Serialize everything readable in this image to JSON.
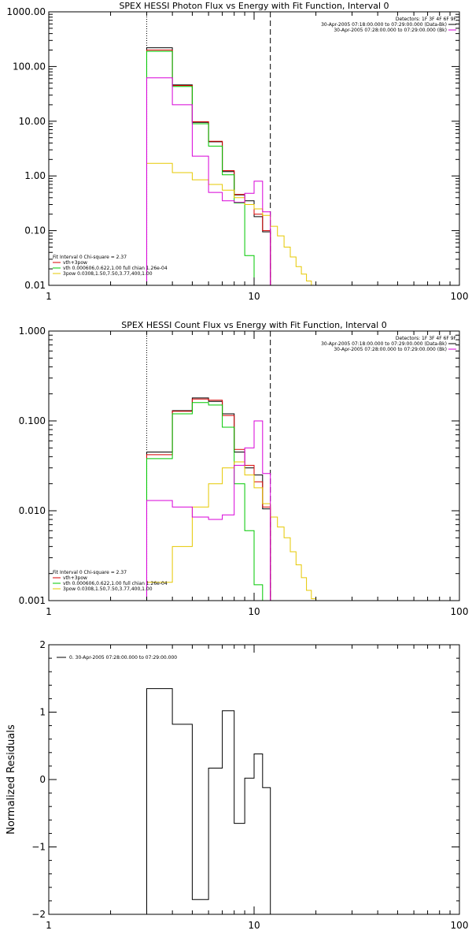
{
  "chart_data": [
    {
      "type": "line",
      "title": "SPEX HESSI Photon Flux vs Energy with Fit Function, Interval 0",
      "xscale": "log",
      "yscale": "log",
      "xlim": [
        1,
        100
      ],
      "ylim": [
        0.01,
        1000
      ],
      "grid": false,
      "x_ticks": [
        "1",
        "10",
        "100"
      ],
      "y_ticks": [
        {
          "value": 1000,
          "label": "1000.00"
        },
        {
          "value": 100,
          "label": "100.00"
        },
        {
          "value": 10,
          "label": "10.00"
        },
        {
          "value": 1,
          "label": "1.00"
        },
        {
          "value": 0.1,
          "label": "0.10"
        },
        {
          "value": 0.01,
          "label": "0.01"
        }
      ],
      "energy_edges": [
        3,
        4,
        5,
        6,
        7,
        8,
        9,
        10,
        11,
        12,
        13,
        14,
        15,
        16,
        17,
        18,
        19,
        20,
        21,
        22
      ],
      "vlines": [
        {
          "x": 3,
          "style": "dotted"
        },
        {
          "x": 12,
          "style": "dashed"
        }
      ],
      "legend_top_right": {
        "detectors": "Detectors: 1F 3F 4F 6F 9F",
        "entries": [
          {
            "text": "30-Apr-2005 07:18:00.000 to 07:29:00.000 (Data-Bk)",
            "color": "#000000"
          },
          {
            "text": "30-Apr-2005 07:28:00.000 to 07:29:00.000 (Bk)",
            "color": "#d800d8"
          }
        ]
      },
      "legend_bottom_left": {
        "header": "Fit Interval 0   Chi-square = 2.37",
        "entries": [
          {
            "text": "vth+3pow",
            "color": "#d80000"
          },
          {
            "text": "vth 0.000606,0.622,1.00  full chian 1.26e-04",
            "color": "#00c800"
          },
          {
            "text": "3pow 0.0308,1.50,7.50,3.77,400,1.00",
            "color": "#e6c800"
          }
        ]
      },
      "series": [
        {
          "name": "Data-Bk",
          "color": "#000000",
          "values": [
            220,
            46,
            9.5,
            4.2,
            1.2,
            0.45,
            0.35,
            0.18,
            0.095
          ]
        },
        {
          "name": "vth+3pow",
          "color": "#d80000",
          "values": [
            200,
            45,
            9.8,
            4.3,
            1.25,
            0.46,
            0.3,
            0.2,
            0.1
          ]
        },
        {
          "name": "vth",
          "color": "#00c800",
          "values": [
            190,
            43,
            9,
            3.5,
            1.05,
            0.32,
            0.035,
            0.0095
          ]
        },
        {
          "name": "3pow",
          "color": "#e6c800",
          "values": [
            1.7,
            1.15,
            0.85,
            0.7,
            0.55,
            0.4,
            0.3,
            0.25,
            0.19,
            0.12,
            0.08,
            0.05,
            0.033,
            0.022,
            0.016,
            0.012,
            0.0095,
            0.0095,
            0.0095
          ]
        },
        {
          "name": "Bk",
          "color": "#d800d8",
          "values": [
            62,
            20,
            2.3,
            0.5,
            0.35,
            0.33,
            0.48,
            0.8,
            0.22
          ]
        }
      ]
    },
    {
      "type": "line",
      "title": "SPEX HESSI Count Flux vs Energy with Fit Function, Interval 0",
      "xscale": "log",
      "yscale": "log",
      "xlim": [
        1,
        100
      ],
      "ylim": [
        0.001,
        1
      ],
      "grid": false,
      "x_ticks": [
        "1",
        "10",
        "100"
      ],
      "y_ticks": [
        {
          "value": 1,
          "label": "1.000"
        },
        {
          "value": 0.1,
          "label": "0.100"
        },
        {
          "value": 0.01,
          "label": "0.010"
        },
        {
          "value": 0.001,
          "label": "0.001"
        }
      ],
      "energy_edges": [
        3,
        4,
        5,
        6,
        7,
        8,
        9,
        10,
        11,
        12,
        13,
        14,
        15,
        16,
        17,
        18,
        19,
        20,
        21,
        22
      ],
      "vlines": [
        {
          "x": 3,
          "style": "dotted"
        },
        {
          "x": 12,
          "style": "dashed"
        }
      ],
      "legend_top_right": {
        "detectors": "Detectors: 1F 3F 4F 6F 9F",
        "entries": [
          {
            "text": "30-Apr-2005 07:18:00.000 to 07:29:00.000 (Data-Bk)",
            "color": "#000000"
          },
          {
            "text": "30-Apr-2005 07:28:00.000 to 07:29:00.000 (Bk)",
            "color": "#d800d8"
          }
        ]
      },
      "legend_bottom_left": {
        "header": "Fit Interval 0   Chi-square = 2.37",
        "entries": [
          {
            "text": "vth+3pow",
            "color": "#d80000"
          },
          {
            "text": "vth 0.000606,0.622,1.00  full chian 1.26e-04",
            "color": "#00c800"
          },
          {
            "text": "3pow 0.0308,1.50,7.50,3.77,400,1.00",
            "color": "#e6c800"
          }
        ]
      },
      "series": [
        {
          "name": "Data-Bk",
          "color": "#000000",
          "values": [
            0.045,
            0.13,
            0.18,
            0.165,
            0.12,
            0.045,
            0.03,
            0.025,
            0.0105
          ]
        },
        {
          "name": "vth+3pow",
          "color": "#d80000",
          "values": [
            0.042,
            0.128,
            0.175,
            0.17,
            0.115,
            0.048,
            0.032,
            0.021,
            0.011
          ]
        },
        {
          "name": "vth",
          "color": "#00c800",
          "values": [
            0.038,
            0.12,
            0.16,
            0.15,
            0.085,
            0.02,
            0.006,
            0.0015,
            0.0009
          ]
        },
        {
          "name": "3pow",
          "color": "#e6c800",
          "values": [
            0.0016,
            0.004,
            0.011,
            0.02,
            0.03,
            0.035,
            0.025,
            0.018,
            0.012,
            0.0085,
            0.0066,
            0.005,
            0.0035,
            0.0025,
            0.0018,
            0.0013,
            0.00105,
            0.0009,
            0.0009
          ]
        },
        {
          "name": "Bk",
          "color": "#d800d8",
          "values": [
            0.013,
            0.011,
            0.0085,
            0.008,
            0.009,
            0.032,
            0.05,
            0.1,
            0.026
          ]
        }
      ]
    },
    {
      "type": "line",
      "title": "",
      "xscale": "log",
      "yscale": "linear",
      "xlim": [
        1,
        100
      ],
      "ylim": [
        -2,
        2
      ],
      "ylabel": "Normalized Residuals",
      "grid": false,
      "x_ticks": [
        "1",
        "10",
        "100"
      ],
      "y_ticks": [
        {
          "value": 2,
          "label": "2"
        },
        {
          "value": 1,
          "label": "1"
        },
        {
          "value": 0,
          "label": "0"
        },
        {
          "value": -1,
          "label": "−1"
        },
        {
          "value": -2,
          "label": "−2"
        }
      ],
      "energy_edges": [
        3,
        4,
        5,
        6,
        7,
        8,
        9,
        10,
        11,
        12
      ],
      "legend_top_left": {
        "entries": [
          {
            "text": "0. 30-Apr-2005 07:28:00.000 to 07:29:00.000",
            "color": "#000000"
          }
        ]
      },
      "series": [
        {
          "name": "0. 30-Apr-2005 07:28:00.000 to 07:29:00.000",
          "color": "#000000",
          "values": [
            1.35,
            0.82,
            -1.78,
            0.17,
            1.02,
            -0.65,
            0.02,
            0.38,
            -0.12
          ]
        }
      ]
    }
  ]
}
